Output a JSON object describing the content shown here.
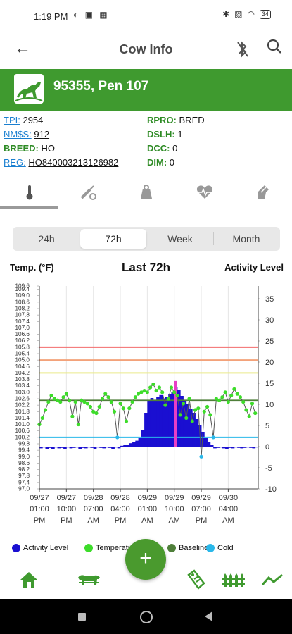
{
  "status_bar": {
    "time": "1:19 PM",
    "battery": "34"
  },
  "app_bar": {
    "title": "Cow Info"
  },
  "cow": {
    "title": "95355, Pen 107"
  },
  "info": {
    "left": [
      {
        "label": "TPI:",
        "value": "2954",
        "style": "link"
      },
      {
        "label": "NM$S:",
        "value": "912",
        "style": "link"
      },
      {
        "label": "BREED:",
        "value": "HO",
        "style": "green"
      },
      {
        "label": "REG:",
        "value": "HO840003213126982",
        "style": "link"
      }
    ],
    "right": [
      {
        "label": "RPRO:",
        "value": "BRED"
      },
      {
        "label": "DSLH:",
        "value": "1"
      },
      {
        "label": "DCC:",
        "value": "0"
      },
      {
        "label": "DIM:",
        "value": "0"
      }
    ]
  },
  "tabs": [
    {
      "icon": "thermometer-icon",
      "active": true
    },
    {
      "icon": "syringe-icon",
      "active": false
    },
    {
      "icon": "scale-icon",
      "active": false
    },
    {
      "icon": "heart-rate-icon",
      "active": false
    },
    {
      "icon": "hand-bandage-icon",
      "active": false
    }
  ],
  "range_selector": {
    "options": [
      "24h",
      "72h",
      "Week",
      "Month"
    ],
    "selected": "72h"
  },
  "chart_header": {
    "left_axis_title": "Temp. (°F)",
    "title": "Last 72h",
    "right_axis_title": "Activity Level"
  },
  "chart_data": {
    "type": "line",
    "title": "Last 72h",
    "ylabel": "Temp. (°F)",
    "y2label": "Activity Level",
    "ylim": [
      97.0,
      109.6
    ],
    "y2lim": [
      -10,
      38
    ],
    "y_ticks": [
      "97.0",
      "97.4",
      "97.8",
      "98.2",
      "98.6",
      "99.0",
      "99.4",
      "99.8",
      "100.2",
      "100.6",
      "101.0",
      "101.4",
      "101.8",
      "102.2",
      "102.6",
      "103.0",
      "103.4",
      "103.8",
      "104.2",
      "104.6",
      "105.0",
      "105.4",
      "105.8",
      "106.2",
      "106.6",
      "107.0",
      "107.4",
      "107.8",
      "108.2",
      "108.6",
      "109.0",
      "109.4",
      "109.6"
    ],
    "y2_ticks": [
      -10,
      -5,
      0,
      5,
      10,
      15,
      20,
      25,
      30,
      35
    ],
    "x_range_hours": [
      0,
      73
    ],
    "x_ticks": [
      {
        "hour": 0,
        "label": [
          "09/27",
          "01:00",
          "PM"
        ]
      },
      {
        "hour": 9,
        "label": [
          "09/27",
          "10:00",
          "PM"
        ]
      },
      {
        "hour": 18,
        "label": [
          "09/28",
          "07:00",
          "AM"
        ]
      },
      {
        "hour": 27,
        "label": [
          "09/28",
          "04:00",
          "PM"
        ]
      },
      {
        "hour": 36,
        "label": [
          "09/29",
          "01:00",
          "AM"
        ]
      },
      {
        "hour": 45,
        "label": [
          "09/29",
          "10:00",
          "AM"
        ]
      },
      {
        "hour": 54,
        "label": [
          "09/29",
          "07:00",
          "PM"
        ]
      },
      {
        "hour": 63,
        "label": [
          "09/30",
          "04:00",
          "AM"
        ]
      }
    ],
    "thresholds": [
      {
        "value": 105.8,
        "color": "#f26c6c"
      },
      {
        "value": 105.0,
        "color": "#f3a27a"
      },
      {
        "value": 104.2,
        "color": "#eaea8c"
      }
    ],
    "baseline": {
      "value": 102.5,
      "color": "#4f7f3a"
    },
    "cold": {
      "value": 100.2,
      "color": "#2ab8ea"
    },
    "highlight_hour": 45.4,
    "series": [
      {
        "name": "Activity Level",
        "color": "#1a0fd1",
        "x": [
          0,
          1,
          2,
          3,
          4,
          5,
          6,
          7,
          8,
          9,
          10,
          11,
          12,
          13,
          14,
          15,
          16,
          17,
          18,
          19,
          20,
          21,
          22,
          23,
          24,
          25,
          26,
          27,
          28,
          29,
          30,
          31,
          32,
          33,
          34,
          35,
          36,
          37,
          38,
          39,
          40,
          41,
          42,
          43,
          44,
          45,
          46,
          47,
          48,
          49,
          50,
          51,
          52,
          53,
          54,
          55,
          56,
          57,
          58,
          59,
          60,
          61,
          62,
          63,
          64,
          65,
          66,
          67,
          68,
          69,
          70,
          71,
          72
        ],
        "values": [
          -0.4,
          -0.2,
          -0.5,
          -0.3,
          -0.6,
          -0.2,
          -0.4,
          -0.3,
          -0.5,
          -0.2,
          -0.4,
          -0.3,
          -0.2,
          -0.5,
          -0.3,
          -0.4,
          -0.2,
          -0.3,
          -0.5,
          -0.2,
          -0.3,
          -0.4,
          -0.2,
          -0.3,
          -0.5,
          -0.2,
          -0.4,
          0.2,
          0.4,
          0.5,
          0.8,
          1.0,
          1.4,
          2.0,
          4.0,
          8.0,
          11.0,
          11.5,
          11.0,
          11.8,
          12.2,
          11.4,
          11.8,
          12.5,
          13.0,
          14.0,
          13.5,
          12.0,
          11.0,
          10.0,
          9.0,
          8.0,
          6.5,
          5.0,
          3.5,
          2.0,
          1.0,
          0.5,
          -0.4,
          -0.3,
          -0.2,
          -0.4,
          -0.5,
          -0.3,
          -0.4,
          -0.2,
          -0.3,
          -0.4,
          -0.3,
          -0.2,
          -0.3,
          -0.4,
          -0.2
        ]
      },
      {
        "name": "Temperature",
        "color": "#3ddc2a",
        "x": [
          0,
          1,
          2,
          3,
          4,
          5,
          6,
          7,
          8,
          9,
          10,
          11,
          12,
          13,
          14,
          15,
          16,
          17,
          18,
          19,
          20,
          21,
          22,
          23,
          24,
          25,
          26,
          27,
          28,
          29,
          30,
          31,
          32,
          33,
          34,
          35,
          36,
          37,
          38,
          39,
          40,
          41,
          42,
          43,
          44,
          45,
          46,
          47,
          48,
          49,
          50,
          51,
          52,
          53,
          54,
          55,
          56,
          57,
          58,
          59,
          60,
          61,
          62,
          63,
          64,
          65,
          66,
          67,
          68,
          69,
          70,
          71,
          72
        ],
        "values": [
          101.0,
          101.4,
          101.9,
          102.4,
          102.8,
          102.6,
          102.5,
          102.4,
          102.7,
          102.9,
          102.5,
          101.5,
          102.4,
          101.0,
          102.5,
          102.4,
          102.3,
          102.1,
          101.8,
          101.7,
          102.1,
          102.6,
          102.9,
          102.7,
          102.4,
          101.8,
          100.2,
          102.3,
          102.0,
          101.2,
          102.0,
          102.4,
          102.7,
          102.9,
          103.0,
          103.1,
          103.0,
          103.3,
          103.5,
          103.1,
          103.3,
          103.0,
          102.2,
          102.6,
          103.3,
          103.0,
          102.8,
          101.6,
          102.3,
          101.4,
          102.6,
          101.2,
          101.9,
          102.0,
          99.0,
          101.8,
          102.1,
          101.6,
          100.2,
          102.6,
          102.5,
          102.7,
          103.0,
          102.4,
          102.8,
          103.2,
          102.9,
          102.7,
          102.4,
          101.9,
          101.5,
          102.3,
          101.7
        ]
      }
    ],
    "legend": [
      "Activity Level",
      "Temperature",
      "Baseline",
      "Cold"
    ]
  },
  "legend": {
    "activity": {
      "label": "Activity Level",
      "color": "#1a0fd1"
    },
    "temperature": {
      "label": "Temperature",
      "color": "#3ddc2a"
    },
    "baseline": {
      "label": "Baseline",
      "color": "#4f7f3a"
    },
    "cold": {
      "label": "Cold",
      "color": "#2ab8ea"
    }
  },
  "bottom_nav": {
    "items": [
      "home-icon",
      "herd-icon",
      "add-button",
      "tag-icon",
      "fence-icon",
      "trend-icon"
    ],
    "fab_label": "+"
  },
  "colors": {
    "brand_green": "#3f9a2f",
    "link_blue": "#1a7fd0"
  }
}
